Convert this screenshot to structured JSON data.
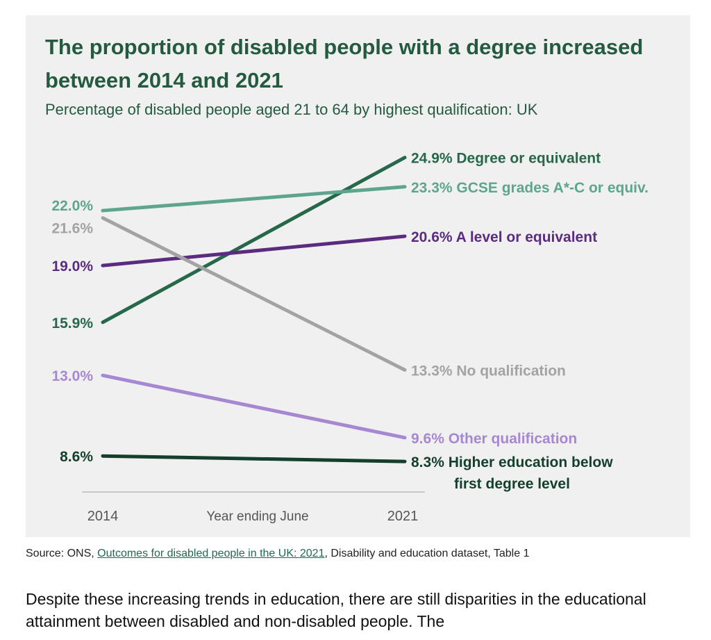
{
  "chart_data": {
    "type": "line",
    "title": "The proportion of disabled people with a degree increased between 2014 and 2021",
    "subtitle": "Percentage of disabled people aged 21 to 64 by highest qualification: UK",
    "xlabel": "Year ending June",
    "x": [
      "2014",
      "2021"
    ],
    "ylim": [
      8,
      25
    ],
    "grid": false,
    "series": [
      {
        "name": "Degree or equivalent",
        "values": [
          15.9,
          24.9
        ],
        "color": "#25684a",
        "start_label": "15.9%",
        "end_label": "24.9% Degree or equivalent"
      },
      {
        "name": "GCSE grades A*-C or equiv.",
        "values": [
          22.0,
          23.3
        ],
        "color": "#5ea58d",
        "start_label": "22.0%",
        "end_label": "23.3% GCSE grades A*-C or equiv."
      },
      {
        "name": "A level or equivalent",
        "values": [
          19.0,
          20.6
        ],
        "color": "#5b2b80",
        "start_label": "19.0%",
        "end_label": "20.6% A level or equivalent"
      },
      {
        "name": "No qualification",
        "values": [
          21.6,
          13.3
        ],
        "color": "#a3a3a3",
        "start_label": "21.6%",
        "end_label": "13.3% No qualification"
      },
      {
        "name": "Other qualification",
        "values": [
          13.0,
          9.6
        ],
        "color": "#a687d1",
        "start_label": "13.0%",
        "end_label": "9.6% Other qualification"
      },
      {
        "name": "Higher education below first degree level",
        "values": [
          8.6,
          8.3
        ],
        "color": "#143f2c",
        "start_label": "8.6%",
        "end_label": [
          "8.3% Higher education below",
          "first degree level"
        ]
      }
    ]
  },
  "source": {
    "prefix": "Source: ONS, ",
    "link_text": "Outcomes for disabled people in the UK: 2021",
    "suffix": ", Disability and education dataset, Table 1"
  },
  "paragraph": "Despite these increasing trends in education, there are still disparities in the educational attainment between disabled and non-disabled people. The"
}
